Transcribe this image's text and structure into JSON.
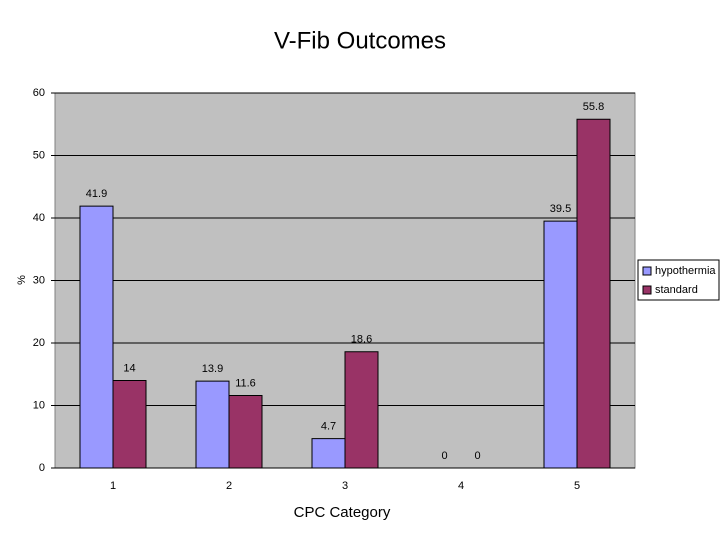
{
  "chart_data": {
    "type": "bar",
    "title": "V-Fib Outcomes",
    "x_label": "CPC Category",
    "y_label": "%",
    "categories": [
      "1",
      "2",
      "3",
      "4",
      "5"
    ],
    "series": [
      {
        "name": "hypothermia",
        "color": "#9999ff",
        "values": [
          41.9,
          13.9,
          4.7,
          0,
          39.5
        ]
      },
      {
        "name": "standard",
        "color": "#993366",
        "values": [
          14,
          11.6,
          18.6,
          0,
          55.8
        ]
      }
    ],
    "ylim": [
      0,
      60
    ],
    "yticks": [
      0,
      10,
      20,
      30,
      40,
      50,
      60
    ],
    "grid": true,
    "legend": "right"
  }
}
